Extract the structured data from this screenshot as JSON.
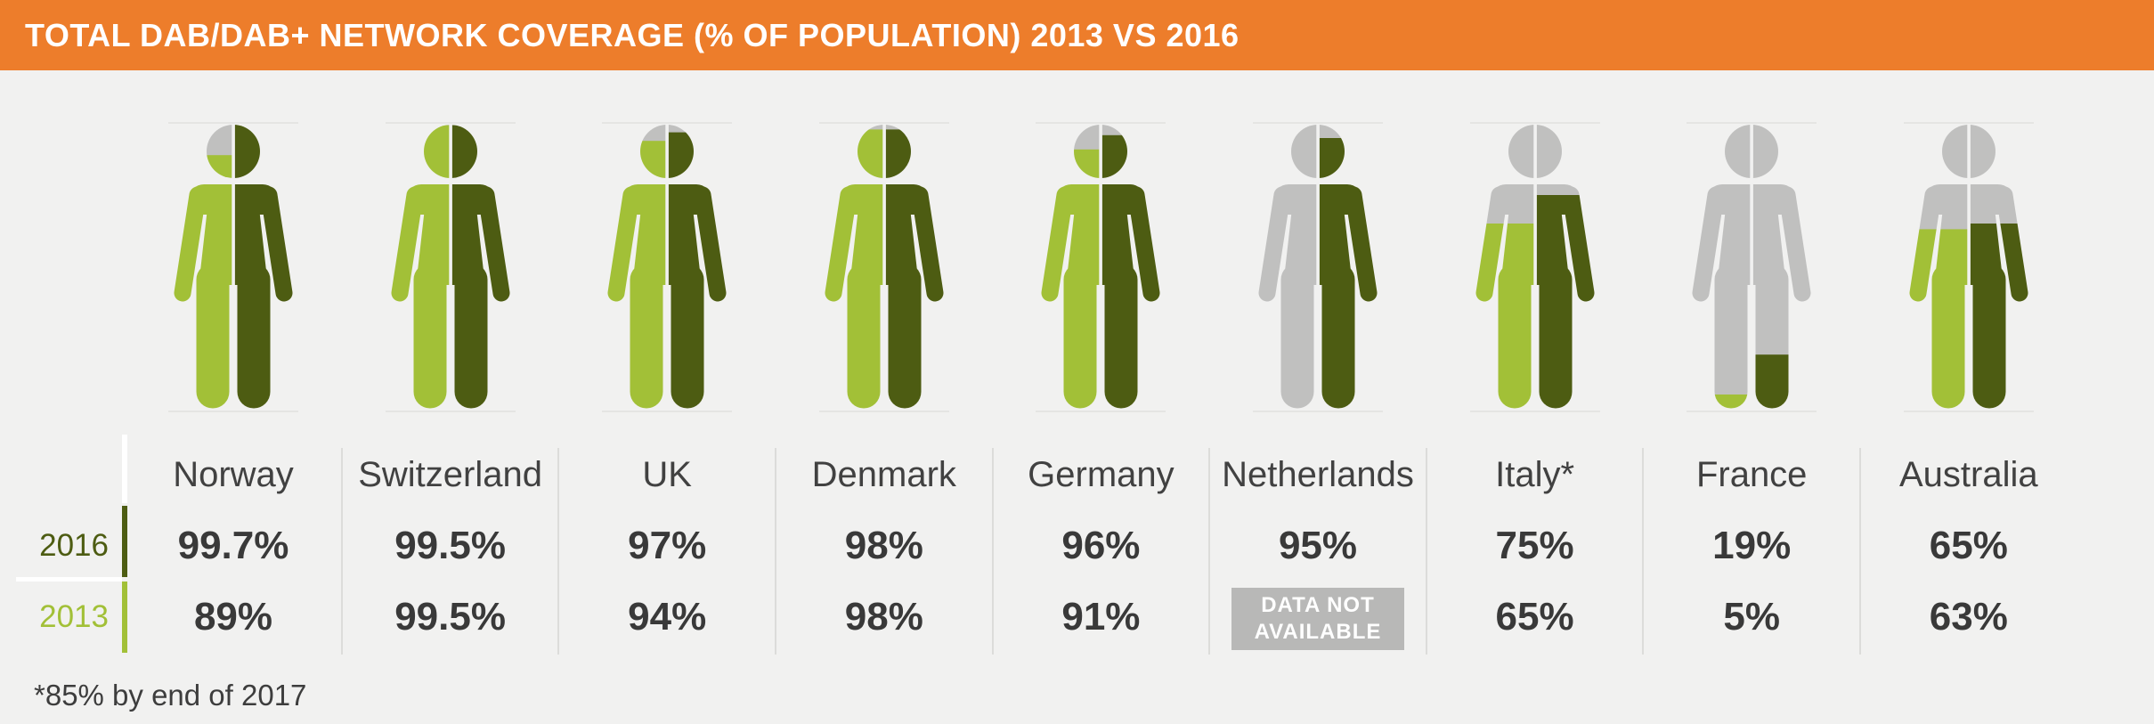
{
  "header": {
    "title": "TOTAL DAB/DAB+ NETWORK COVERAGE (% OF POPULATION) 2013 VS 2016"
  },
  "legend": {
    "row_2016_label": "2016",
    "row_2013_label": "2013"
  },
  "footnote": "*85% by end of 2017",
  "chart_data": {
    "type": "pictogram-bar",
    "title": "TOTAL DAB/DAB+ NETWORK COVERAGE (% OF POPULATION) 2013 VS 2016",
    "unit": "% of population",
    "series": [
      "2016",
      "2013"
    ],
    "categories": [
      "Norway",
      "Switzerland",
      "UK",
      "Denmark",
      "Germany",
      "Netherlands",
      "Italy*",
      "France",
      "Australia"
    ],
    "ylim": [
      0,
      100
    ],
    "legend_position": "left",
    "countries": [
      {
        "name": "Norway",
        "v2016": 99.7,
        "v2013": 89,
        "d2016": "99.7%",
        "d2013": "89%"
      },
      {
        "name": "Switzerland",
        "v2016": 99.5,
        "v2013": 99.5,
        "d2016": "99.5%",
        "d2013": "99.5%"
      },
      {
        "name": "UK",
        "v2016": 97,
        "v2013": 94,
        "d2016": "97%",
        "d2013": "94%"
      },
      {
        "name": "Denmark",
        "v2016": 98,
        "v2013": 98,
        "d2016": "98%",
        "d2013": "98%"
      },
      {
        "name": "Germany",
        "v2016": 96,
        "v2013": 91,
        "d2016": "96%",
        "d2013": "91%"
      },
      {
        "name": "Netherlands",
        "v2016": 95,
        "v2013": null,
        "d2016": "95%",
        "d2013": null
      },
      {
        "name": "Italy*",
        "v2016": 75,
        "v2013": 65,
        "d2016": "75%",
        "d2013": "65%"
      },
      {
        "name": "France",
        "v2016": 19,
        "v2013": 5,
        "d2016": "19%",
        "d2013": "5%"
      },
      {
        "name": "Australia",
        "v2016": 65,
        "v2013": 63,
        "d2016": "65%",
        "d2013": "63%"
      }
    ],
    "not_available": [
      "DATA NOT",
      "AVAILABLE"
    ],
    "footnote": "*85% by end of 2017",
    "colors": {
      "accent": "#ed7d2b",
      "y2016": "#4d5c12",
      "y2013": "#a2c037",
      "empty": "#c0c0bf",
      "background": "#f1f1f0",
      "badge": "#b8b8b7",
      "text": "#393939"
    }
  }
}
